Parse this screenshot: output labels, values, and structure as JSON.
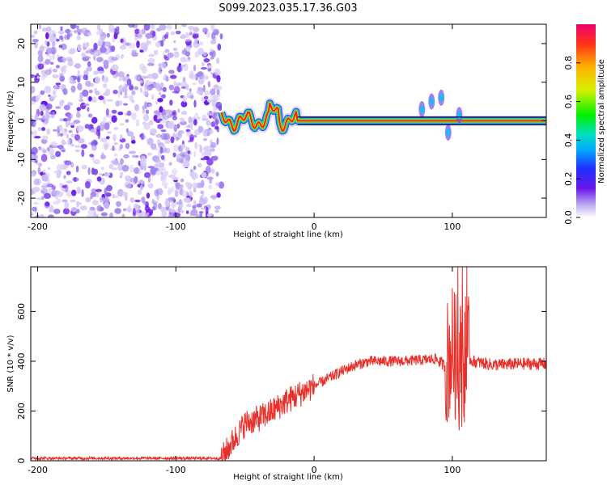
{
  "chart_data": [
    {
      "type": "heatmap",
      "title": "S099.2023.035.17.36.G03",
      "xlabel": "Height of straight line (km)",
      "ylabel": "Frequency (Hz)",
      "xlim": [
        -205,
        168
      ],
      "ylim": [
        -25,
        25
      ],
      "xticks": [
        -200,
        -100,
        0,
        100
      ],
      "yticks": [
        -20,
        -10,
        0,
        10,
        20
      ],
      "colorbar": {
        "label": "Normalized spectral amplitude",
        "range": [
          0,
          1
        ],
        "ticks": [
          0.0,
          0.2,
          0.4,
          0.6,
          0.8
        ]
      },
      "regions": {
        "noise_band_x": [
          -205,
          -67
        ],
        "signal_onset_x": -67,
        "tone_frequency_hz": 0,
        "tone_start_x": -12
      }
    },
    {
      "type": "line",
      "xlabel": "Height of straight line (km)",
      "ylabel": "SNR (10 * v/v)",
      "xlim": [
        -205,
        168
      ],
      "ylim": [
        0,
        780
      ],
      "xticks": [
        -200,
        -100,
        0,
        100
      ],
      "yticks": [
        0,
        200,
        400,
        600
      ],
      "series": [
        {
          "color": "#e8302a",
          "x": [
            -205,
            -67,
            -50,
            -40,
            -30,
            -20,
            -10,
            0,
            10,
            20,
            30,
            40,
            60,
            80,
            88,
            95,
            100,
            105,
            110,
            115,
            130,
            150,
            168
          ],
          "values": [
            10,
            10,
            150,
            170,
            200,
            240,
            270,
            300,
            330,
            360,
            385,
            400,
            400,
            405,
            410,
            380,
            450,
            380,
            420,
            400,
            385,
            390,
            390
          ]
        }
      ]
    }
  ]
}
